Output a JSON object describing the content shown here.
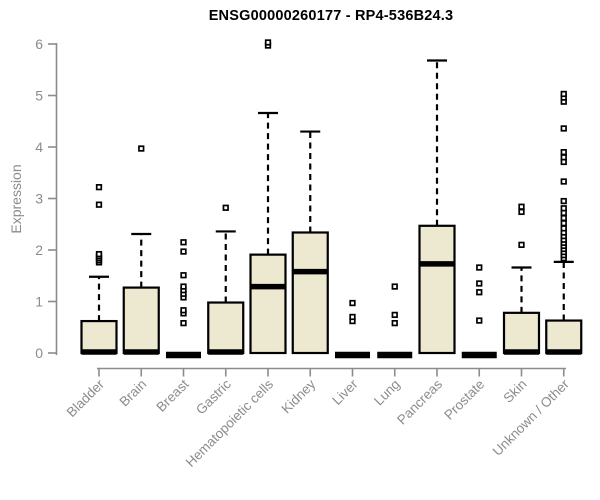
{
  "chart_data": {
    "type": "boxplot",
    "title": "ENSG00000260177 - RP4-536B24.3",
    "ylabel": "Expression",
    "xlabel": "",
    "ylim": [
      0,
      6
    ],
    "yticks": [
      0,
      1,
      2,
      3,
      4,
      5,
      6
    ],
    "grid": false,
    "legend": "none",
    "box_fill": "#ede8d0",
    "box_stroke": "#000000",
    "axis_color": "#8c8c8c",
    "categories": [
      "Bladder",
      "Brain",
      "Breast",
      "Gastric",
      "Hematopoietic cells",
      "Kidney",
      "Liver",
      "Lung",
      "Pancreas",
      "Prostate",
      "Skin",
      "Unknown / Other"
    ],
    "boxes": [
      {
        "name": "Bladder",
        "q1": 0,
        "median": 0.02,
        "q3": 0.62,
        "whisker_low": 0,
        "whisker_high": 1.48,
        "outliers": [
          1.76,
          1.8,
          1.84,
          1.88,
          1.92,
          2.88,
          3.22
        ]
      },
      {
        "name": "Brain",
        "q1": 0,
        "median": 0.02,
        "q3": 1.27,
        "whisker_low": 0,
        "whisker_high": 2.31,
        "outliers": [
          3.97
        ]
      },
      {
        "name": "Breast",
        "q1": 0,
        "median": 0.02,
        "q3": 0.02,
        "whisker_low": 0,
        "whisker_high": 0.02,
        "outliers": [
          0.58,
          0.77,
          0.83,
          1.08,
          1.15,
          1.22,
          1.29,
          1.51,
          1.97,
          2.15
        ]
      },
      {
        "name": "Gastric",
        "q1": 0,
        "median": 0.02,
        "q3": 0.98,
        "whisker_low": 0,
        "whisker_high": 2.36,
        "outliers": [
          2.82
        ]
      },
      {
        "name": "Hematopoietic cells",
        "q1": 0,
        "median": 1.29,
        "q3": 1.91,
        "whisker_low": 0,
        "whisker_high": 4.66,
        "outliers": [
          5.97,
          6.03
        ]
      },
      {
        "name": "Kidney",
        "q1": 0,
        "median": 1.58,
        "q3": 2.34,
        "whisker_low": 0,
        "whisker_high": 4.3,
        "outliers": []
      },
      {
        "name": "Liver",
        "q1": 0,
        "median": 0.02,
        "q3": 0.02,
        "whisker_low": 0,
        "whisker_high": 0.02,
        "outliers": [
          0.62,
          0.7,
          0.97
        ]
      },
      {
        "name": "Lung",
        "q1": 0,
        "median": 0.02,
        "q3": 0.02,
        "whisker_low": 0,
        "whisker_high": 0.02,
        "outliers": [
          0.58,
          0.74,
          1.29
        ]
      },
      {
        "name": "Pancreas",
        "q1": 0,
        "median": 1.73,
        "q3": 2.47,
        "whisker_low": 0,
        "whisker_high": 5.68,
        "outliers": []
      },
      {
        "name": "Prostate",
        "q1": 0,
        "median": 0.02,
        "q3": 0.02,
        "whisker_low": 0,
        "whisker_high": 0.02,
        "outliers": [
          0.63,
          1.18,
          1.35,
          1.66
        ]
      },
      {
        "name": "Skin",
        "q1": 0,
        "median": 0.02,
        "q3": 0.78,
        "whisker_low": 0,
        "whisker_high": 1.66,
        "outliers": [
          2.1,
          2.74,
          2.84
        ]
      },
      {
        "name": "Unknown / Other",
        "q1": 0,
        "median": 0.02,
        "q3": 0.63,
        "whisker_low": 0,
        "whisker_high": 1.77,
        "outliers": [
          1.84,
          1.9,
          1.96,
          2.02,
          2.08,
          2.14,
          2.2,
          2.27,
          2.34,
          2.42,
          2.52,
          2.62,
          2.72,
          2.81,
          2.95,
          3.33,
          3.71,
          3.8,
          3.9,
          4.36,
          4.88,
          4.96,
          5.03
        ]
      }
    ]
  }
}
